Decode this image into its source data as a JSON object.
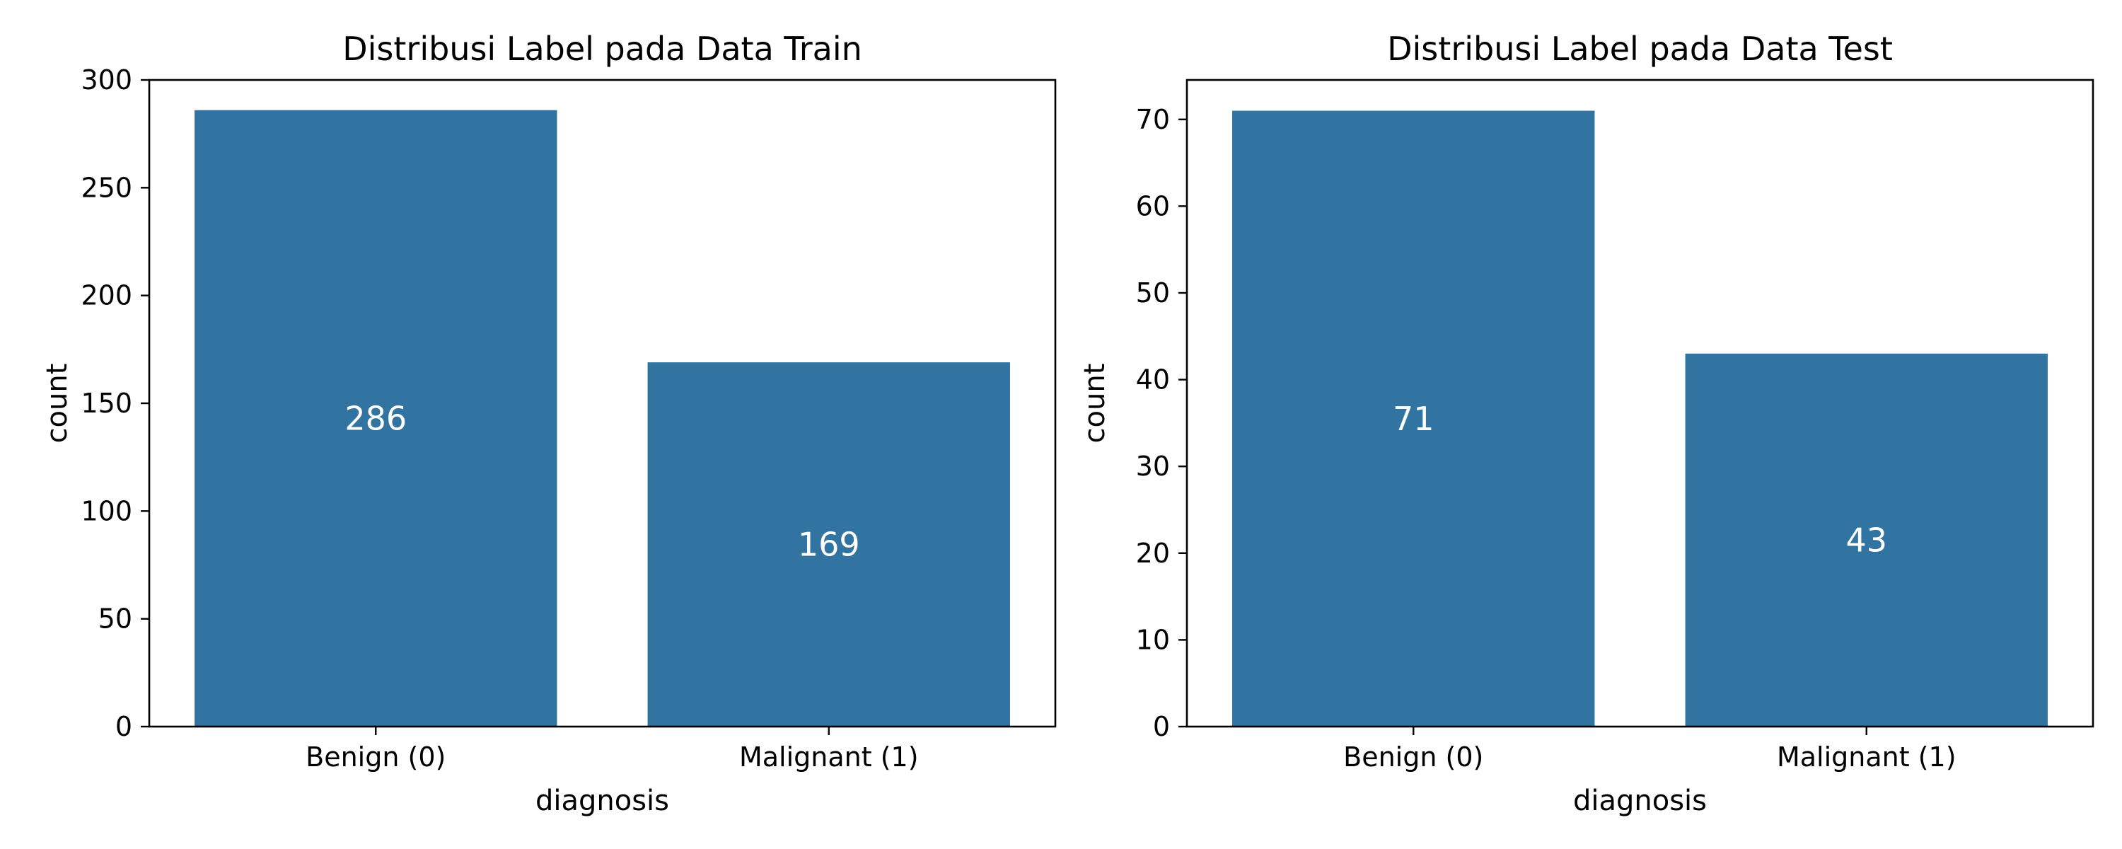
{
  "chart_data": [
    {
      "type": "bar",
      "title": "Distribusi Label pada Data Train",
      "xlabel": "diagnosis",
      "ylabel": "count",
      "categories": [
        "Benign (0)",
        "Malignant (1)"
      ],
      "values": [
        286,
        169
      ],
      "data_labels": [
        "286",
        "169"
      ],
      "ylim": [
        0,
        300
      ],
      "yticks": [
        0,
        50,
        100,
        150,
        200,
        250,
        300
      ],
      "bar_color": "#3274a1",
      "grid": false,
      "legend": "none"
    },
    {
      "type": "bar",
      "title": "Distribusi Label pada Data Test",
      "xlabel": "diagnosis",
      "ylabel": "count",
      "categories": [
        "Benign (0)",
        "Malignant (1)"
      ],
      "values": [
        71,
        43
      ],
      "data_labels": [
        "71",
        "43"
      ],
      "ylim": [
        0,
        74.55
      ],
      "yticks": [
        0,
        10,
        20,
        30,
        40,
        50,
        60,
        70
      ],
      "bar_color": "#3274a1",
      "grid": false,
      "legend": "none"
    }
  ]
}
